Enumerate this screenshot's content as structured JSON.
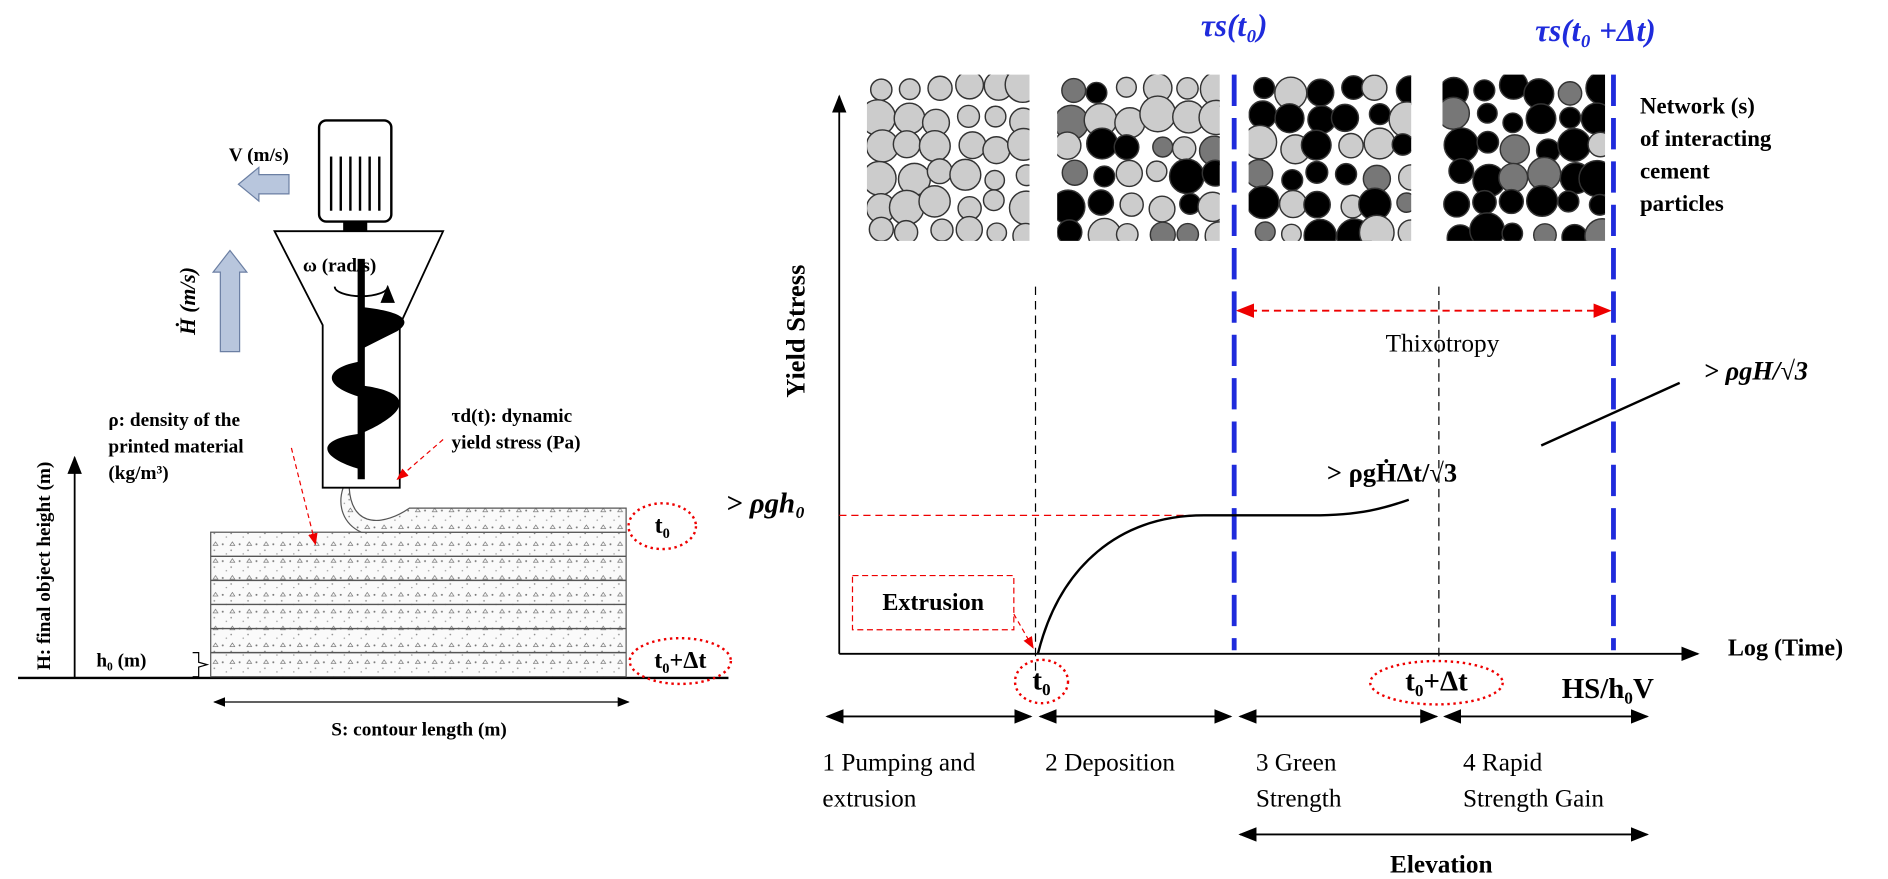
{
  "printer": {
    "velocity": "V (m/s)",
    "rise_rate": "Ḣ (m/s)",
    "rotation": "ω (rad/s)",
    "density": [
      "ρ: density of the",
      "printed material",
      "(kg/m³)"
    ],
    "dynamic_stress": [
      "τd(t): dynamic",
      "yield stress (Pa)"
    ],
    "height": "H: final object height (m)",
    "layer_height": "h₀ (m)",
    "first_layer": "t₀",
    "last_layer": "t₀+Δt",
    "contour": "S: contour length (m)"
  },
  "plot": {
    "tau_t0": "τs(t₀)",
    "tau_t0_dt": "τs(t₀ +Δt)",
    "network": [
      "Network (s)",
      "of interacting",
      "cement",
      "particles"
    ],
    "y_axis": "Yield Stress",
    "x_axis": "Log (Time)",
    "thixotropy": "Thixotropy",
    "rho_g_H": "> ρgH/√3",
    "rho_g_Hdot": "> ρgḢΔt/√3",
    "rho_g_h0": "> ρgh₀",
    "extrusion": "Extrusion",
    "t0": "t₀",
    "t0_dt": "t₀+Δt",
    "end_time": "HS/h₀V",
    "phases": [
      [
        "1 Pumping and",
        "extrusion"
      ],
      [
        "2 Deposition"
      ],
      [
        "3 Green",
        "Strength"
      ],
      [
        "4 Rapid",
        "Strength Gain"
      ]
    ],
    "elevation": "Elevation"
  }
}
